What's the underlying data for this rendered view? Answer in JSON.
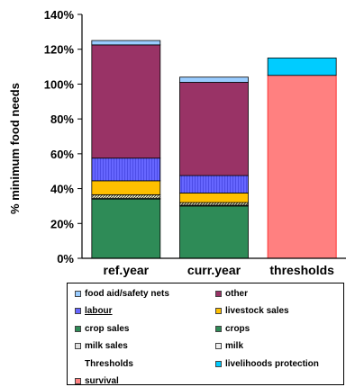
{
  "chart_data": {
    "type": "bar",
    "stacked": true,
    "ylabel": "% minimum food needs",
    "ylim": [
      0,
      140
    ],
    "yticks": [
      "0%",
      "20%",
      "40%",
      "60%",
      "80%",
      "100%",
      "120%",
      "140%"
    ],
    "yticks_values": [
      0,
      20,
      40,
      60,
      80,
      100,
      120,
      140
    ],
    "categories": [
      "ref.year",
      "curr.year",
      "thresholds"
    ],
    "series": [
      {
        "name": "crops",
        "color": "#2e8b57",
        "values": [
          34,
          30,
          0
        ]
      },
      {
        "name": "milk",
        "color": "#f0f0f0",
        "values": [
          0.5,
          0.5,
          0
        ]
      },
      {
        "name": "crop sales",
        "color": "#2e8b57",
        "values": [
          0,
          0,
          0
        ]
      },
      {
        "name": "milk sales",
        "color": "#e0e0e0",
        "values": [
          2,
          1.5,
          0
        ]
      },
      {
        "name": "livestock sales",
        "color": "#ffc000",
        "values": [
          8,
          5.5,
          0
        ]
      },
      {
        "name": "labour",
        "color": "#6666ff",
        "values": [
          13,
          10,
          0
        ]
      },
      {
        "name": "other",
        "color": "#993366",
        "values": [
          65,
          53.5,
          0
        ]
      },
      {
        "name": "food aid/safety nets",
        "color": "#99ccff",
        "values": [
          2.5,
          3,
          0
        ]
      },
      {
        "name": "survival",
        "color": "#ff8080",
        "values": [
          0,
          0,
          105
        ]
      },
      {
        "name": "livelihoods protection",
        "color": "#00ccff",
        "values": [
          0,
          0,
          10
        ]
      }
    ]
  },
  "legend": {
    "items": [
      {
        "label": "food aid/safety nets",
        "color": "#99ccff",
        "style": "normal"
      },
      {
        "label": "other",
        "color": "#993366",
        "style": "normal"
      },
      {
        "label": "labour",
        "color": "#6666ff",
        "style": "underline"
      },
      {
        "label": "livestock sales",
        "color": "#ffc000",
        "style": "normal"
      },
      {
        "label": "crop sales",
        "color": "#2e8b57",
        "style": "normal"
      },
      {
        "label": "crops",
        "color": "#2e8b57",
        "style": "normal"
      },
      {
        "label": "milk sales",
        "color": "#e0e0e0",
        "style": "normal"
      },
      {
        "label": "milk",
        "color": "#f0f0f0",
        "style": "normal"
      },
      {
        "label": "Thresholds",
        "color": "",
        "style": "normal"
      },
      {
        "label": "livelihoods protection",
        "color": "#00ccff",
        "style": "normal"
      },
      {
        "label": "survival",
        "color": "#ff8080",
        "style": "normal"
      }
    ]
  }
}
